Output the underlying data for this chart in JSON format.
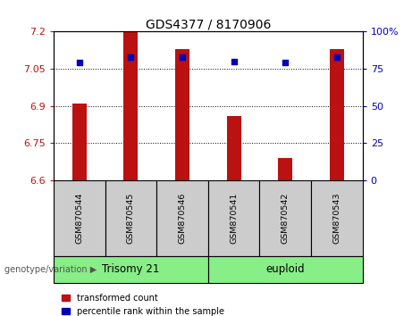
{
  "title": "GDS4377 / 8170906",
  "samples": [
    "GSM870544",
    "GSM870545",
    "GSM870546",
    "GSM870541",
    "GSM870542",
    "GSM870543"
  ],
  "red_values": [
    6.91,
    7.2,
    7.13,
    6.86,
    6.69,
    7.13
  ],
  "blue_values": [
    79,
    83,
    83,
    80,
    79,
    83
  ],
  "ymin": 6.6,
  "ymax": 7.2,
  "y2min": 0,
  "y2max": 100,
  "yticks": [
    6.6,
    6.75,
    6.9,
    7.05,
    7.2
  ],
  "ytick_labels": [
    "6.6",
    "6.75",
    "6.9",
    "7.05",
    "7.2"
  ],
  "y2ticks": [
    0,
    25,
    50,
    75,
    100
  ],
  "y2tick_labels": [
    "0",
    "25",
    "50",
    "75",
    "100%"
  ],
  "bar_color": "#bb1111",
  "marker_color": "#0000bb",
  "bar_width": 0.28,
  "legend_items": [
    "transformed count",
    "percentile rank within the sample"
  ],
  "legend_colors": [
    "#bb1111",
    "#0000bb"
  ],
  "genotype_label": "genotype/variation",
  "trisomy_label": "Trisomy 21",
  "euploid_label": "euploid",
  "group_color": "#88ee88",
  "label_bg_color": "#cccccc",
  "trisomy_indices": [
    0,
    1,
    2
  ],
  "euploid_indices": [
    3,
    4,
    5
  ]
}
